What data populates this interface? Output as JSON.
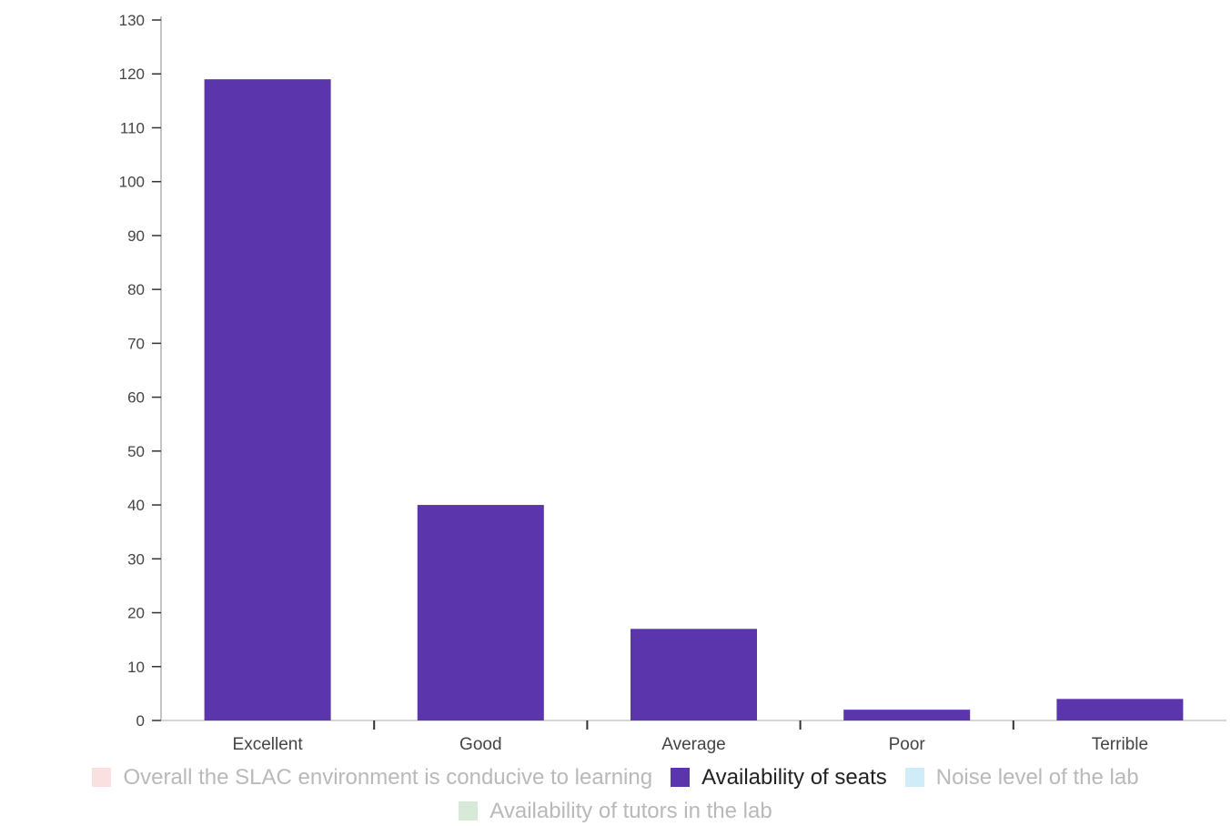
{
  "chart_data": {
    "type": "bar",
    "categories": [
      "Excellent",
      "Good",
      "Average",
      "Poor",
      "Terrible"
    ],
    "series": [
      {
        "name": "Availability of seats",
        "values": [
          119,
          40,
          17,
          2,
          4
        ],
        "color": "#5b35ac"
      }
    ],
    "y_ticks": [
      "0",
      "10",
      "20",
      "30",
      "40",
      "50",
      "60",
      "70",
      "80",
      "90",
      "100",
      "110",
      "120",
      "130"
    ],
    "ylim": [
      0,
      130
    ],
    "grid": false,
    "legend_position": "bottom",
    "legend": [
      {
        "label": "Overall the SLAC environment is conducive to learning",
        "color": "#f2a5a5",
        "active": false
      },
      {
        "label": "Availability of seats",
        "color": "#5b35ac",
        "active": true
      },
      {
        "label": "Noise level of the lab",
        "color": "#7cc8ef",
        "active": false
      },
      {
        "label": "Availability of tutors in the lab",
        "color": "#8bc38f",
        "active": false
      }
    ]
  }
}
